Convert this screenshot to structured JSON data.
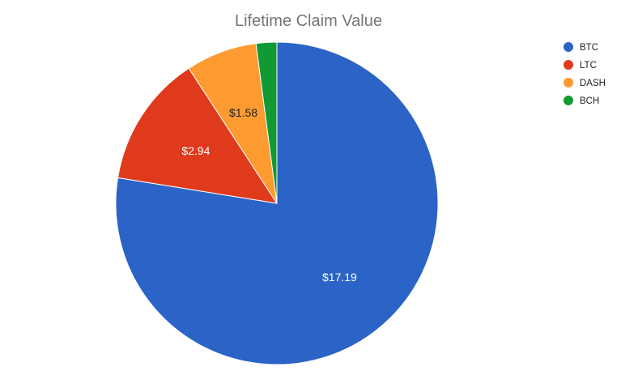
{
  "chart_data": {
    "type": "pie",
    "title": "Lifetime Claim Value",
    "start_angle_deg": 0,
    "direction": "clockwise",
    "legend_position": "top-right",
    "slices": [
      {
        "name": "BTC",
        "value": 17.19,
        "label": "$17.19",
        "color": "#2b63c6",
        "label_color": "#ffffff"
      },
      {
        "name": "LTC",
        "value": 2.94,
        "label": "$2.94",
        "color": "#e03a1c",
        "label_color": "#ffffff"
      },
      {
        "name": "DASH",
        "value": 1.58,
        "label": "$1.58",
        "color": "#fd9b31",
        "label_color": "#222222"
      },
      {
        "name": "BCH",
        "value": 0.46,
        "label": "",
        "color": "#119a33",
        "label_color": "#ffffff"
      }
    ]
  }
}
